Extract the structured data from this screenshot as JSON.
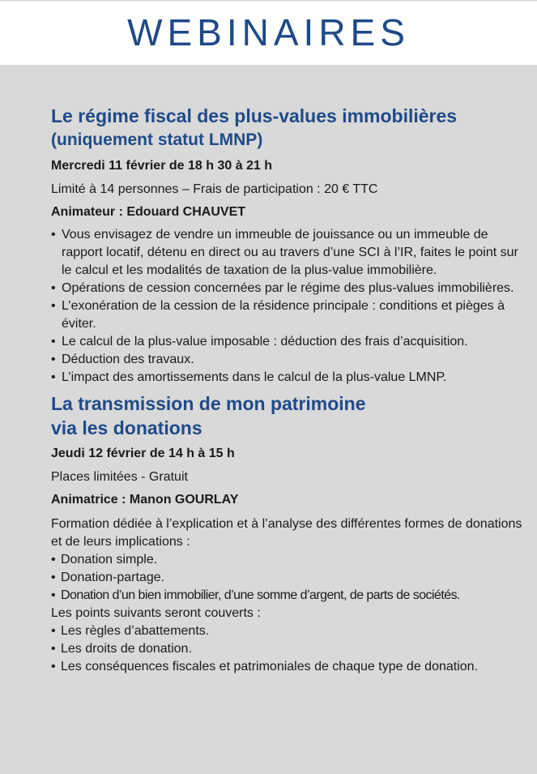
{
  "header": {
    "title": "WEBINAIRES"
  },
  "colors": {
    "accent": "#1f4a8a",
    "background": "#d9d9d9"
  },
  "sections": [
    {
      "title": "Le régime fiscal des plus-values immobilières",
      "subtitle": "(uniquement statut LMNP)",
      "date": "Mercredi 11 février de 18 h 30 à 21 h",
      "info": "Limité à 14 personnes – Frais de participation : 20 € TTC",
      "host": "Animateur : Edouard CHAUVET",
      "bullets": [
        "Vous envisagez de vendre un immeuble de jouissance ou un immeuble de rapport locatif, détenu en direct ou au travers d’une SCI à l’IR, faites le point sur le calcul et les modalités de taxation de la plus-value immobilière.",
        "Opérations de cession concernées par le régime des plus-values immobilières.",
        "L’exonération de la cession de la résidence principale : conditions et pièges à éviter.",
        "Le calcul de la plus-value imposable : déduction des frais d’acquisition.",
        "Déduction des travaux.",
        "L’impact des amortissements dans le calcul de la plus-value LMNP."
      ]
    },
    {
      "title": "La transmission de mon patrimoine",
      "subtitle": "via les donations",
      "date": "Jeudi 12 février de 14 h à 15 h",
      "info": "Places limitées - Gratuit",
      "host": "Animatrice : Manon GOURLAY",
      "intro": "Formation dédiée à l’explication et à l’analyse des différentes formes de donations et de leurs implications :",
      "bullets": [
        "Donation simple.",
        "Donation-partage.",
        "Donation d’un bien immobilier, d’une somme d’argent, de parts de sociétés."
      ],
      "intro2": "Les points suivants seront couverts :",
      "bullets2": [
        "Les règles d’abattements.",
        "Les droits de donation.",
        "Les conséquences fiscales et patrimoniales de chaque type de donation."
      ]
    }
  ]
}
